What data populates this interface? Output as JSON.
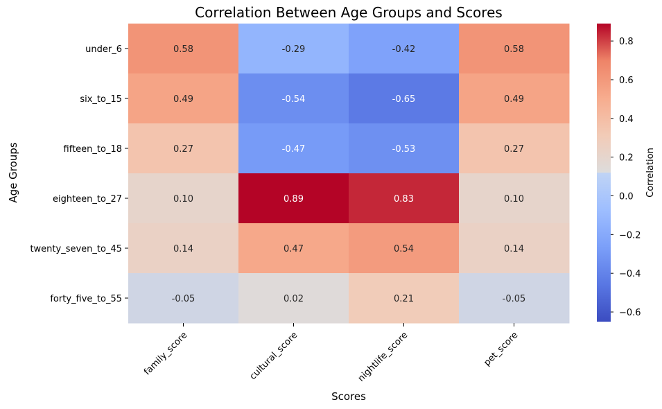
{
  "chart_data": {
    "type": "heatmap",
    "title": "Correlation Between Age Groups and Scores",
    "xlabel": "Scores",
    "ylabel": "Age Groups",
    "colorbar_label": "Correlation",
    "colormap": "coolwarm",
    "columns": [
      "family_score",
      "cultural_score",
      "nightlife_score",
      "pet_score"
    ],
    "rows": [
      "under_6",
      "six_to_15",
      "fifteen_to_18",
      "eighteen_to_27",
      "twenty_seven_to_45",
      "forty_five_to_55"
    ],
    "values": [
      [
        0.58,
        -0.29,
        -0.42,
        0.58
      ],
      [
        0.49,
        -0.54,
        -0.65,
        0.49
      ],
      [
        0.27,
        -0.47,
        -0.53,
        0.27
      ],
      [
        0.1,
        0.89,
        0.83,
        0.1
      ],
      [
        0.14,
        0.47,
        0.54,
        0.14
      ],
      [
        -0.05,
        0.02,
        0.21,
        -0.05
      ]
    ],
    "value_format": "0.00",
    "vmin": -0.65,
    "vmax": 0.89,
    "colorbar_ticks": [
      -0.6,
      -0.4,
      -0.2,
      0.0,
      0.2,
      0.4,
      0.6,
      0.8
    ],
    "colorbar_tick_labels": [
      "−0.6",
      "−0.4",
      "−0.2",
      "0.0",
      "0.2",
      "0.4",
      "0.6",
      "0.8"
    ],
    "grid": false
  }
}
